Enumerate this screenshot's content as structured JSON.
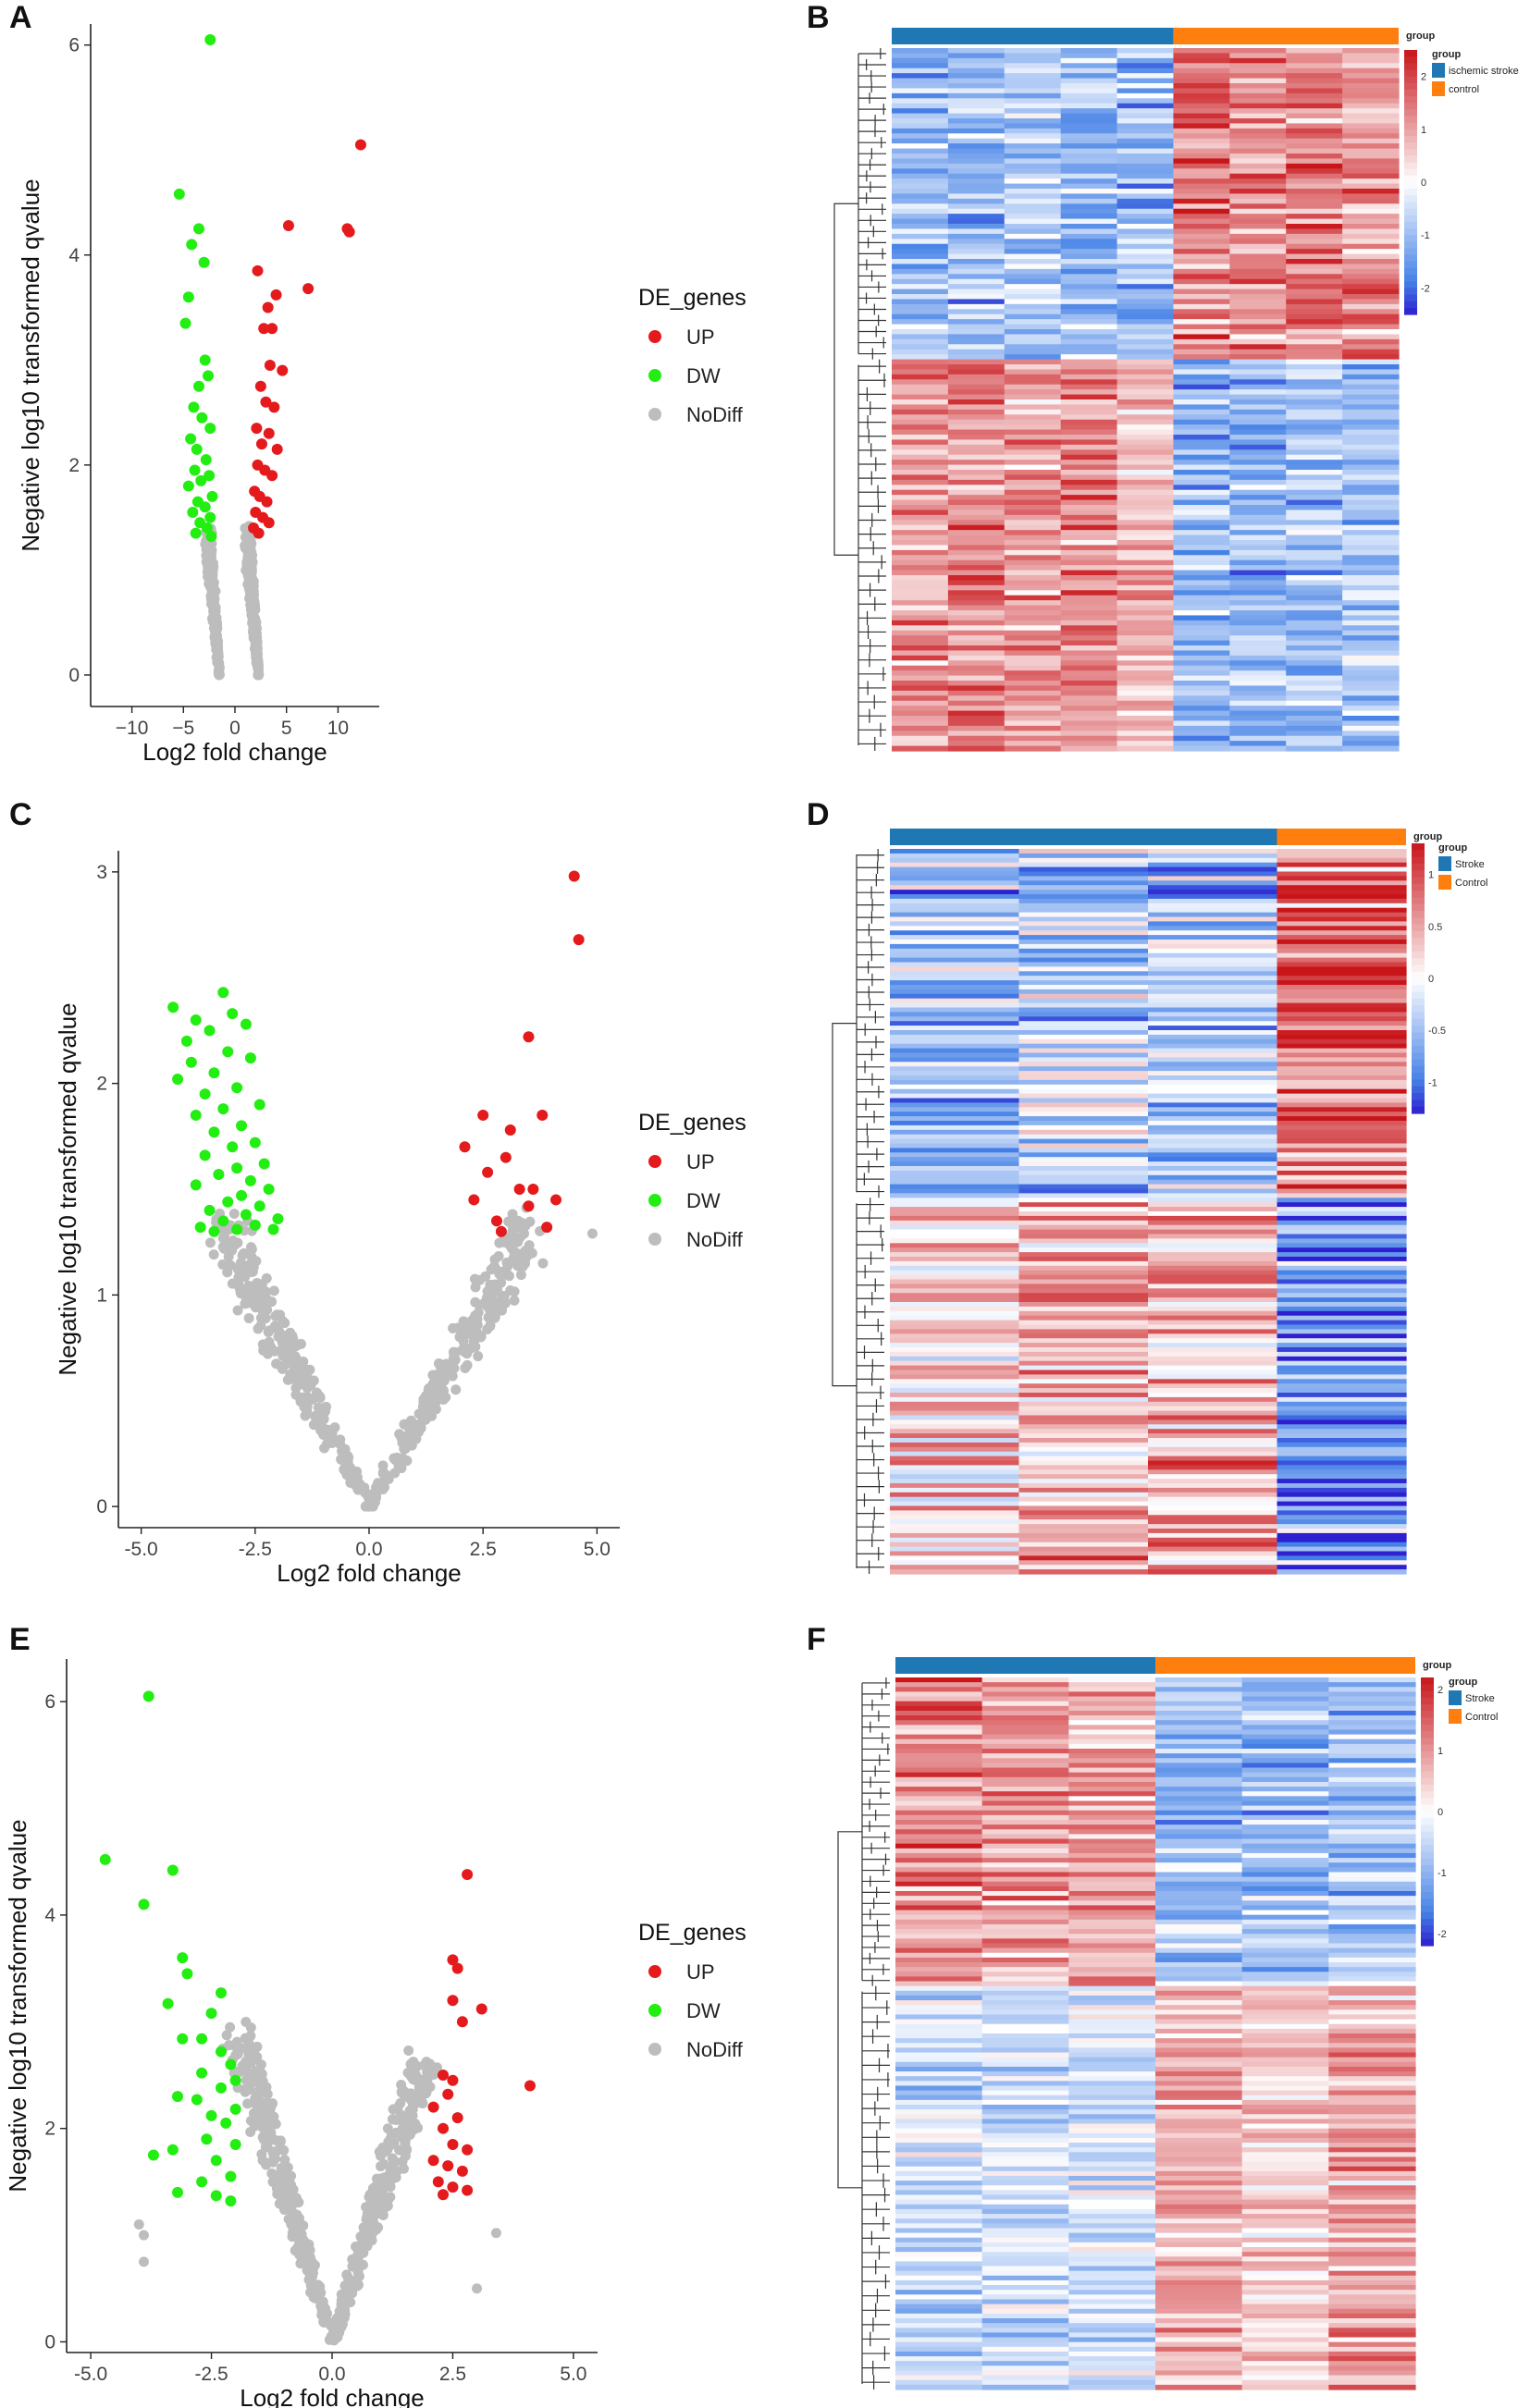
{
  "panel_labels": [
    "A",
    "B",
    "C",
    "D",
    "E",
    "F"
  ],
  "colors": {
    "up": "#e41a1c",
    "dw": "#22ee11",
    "nodiff": "#bdbdbd",
    "group_blue": "#1f77b4",
    "group_orange": "#ff7f0e",
    "heat_low": "#2e1fd0",
    "heat_mid": "#ffffff",
    "heat_high": "#c8151a"
  },
  "chart_data": [
    {
      "panel": "A",
      "type": "scatter",
      "title": "",
      "xlabel": "Log2 fold change",
      "ylabel": "Negative log10 transformed qvalue",
      "xlim": [
        -14,
        14
      ],
      "ylim": [
        -0.3,
        6.2
      ],
      "xticks": [
        -10,
        -5,
        0,
        5,
        10
      ],
      "yticks": [
        0,
        2,
        4,
        6
      ],
      "xtick_labels": [
        "−10",
        "−5",
        "0",
        "5",
        "10"
      ],
      "ytick_labels": [
        "0",
        "2",
        "4",
        "6"
      ],
      "legend": {
        "title": "DE_genes",
        "entries": [
          "UP",
          "DW",
          "NoDiff"
        ],
        "position": "right"
      },
      "series": [
        {
          "name": "UP",
          "points": [
            [
              12.2,
              5.05
            ],
            [
              11.1,
              4.22
            ],
            [
              10.9,
              4.25
            ],
            [
              5.2,
              4.28
            ],
            [
              7.1,
              3.68
            ],
            [
              2.2,
              3.85
            ],
            [
              3.2,
              3.5
            ],
            [
              4.0,
              3.62
            ],
            [
              3.6,
              3.3
            ],
            [
              2.8,
              3.3
            ],
            [
              4.6,
              2.9
            ],
            [
              3.4,
              2.95
            ],
            [
              2.5,
              2.75
            ],
            [
              3.0,
              2.6
            ],
            [
              3.8,
              2.55
            ],
            [
              2.1,
              2.35
            ],
            [
              3.3,
              2.3
            ],
            [
              2.6,
              2.2
            ],
            [
              4.1,
              2.15
            ],
            [
              2.2,
              2.0
            ],
            [
              2.9,
              1.95
            ],
            [
              3.6,
              1.9
            ],
            [
              1.9,
              1.75
            ],
            [
              2.4,
              1.7
            ],
            [
              3.1,
              1.65
            ],
            [
              2.0,
              1.55
            ],
            [
              2.7,
              1.5
            ],
            [
              3.3,
              1.45
            ],
            [
              1.8,
              1.4
            ],
            [
              2.3,
              1.35
            ]
          ]
        },
        {
          "name": "DW",
          "points": [
            [
              -2.4,
              6.05
            ],
            [
              -5.4,
              4.58
            ],
            [
              -4.2,
              4.1
            ],
            [
              -3.5,
              4.25
            ],
            [
              -3.0,
              3.93
            ],
            [
              -4.5,
              3.6
            ],
            [
              -4.8,
              3.35
            ],
            [
              -2.9,
              3.0
            ],
            [
              -3.5,
              2.75
            ],
            [
              -2.6,
              2.85
            ],
            [
              -4.0,
              2.55
            ],
            [
              -3.2,
              2.45
            ],
            [
              -2.4,
              2.35
            ],
            [
              -4.3,
              2.25
            ],
            [
              -3.7,
              2.15
            ],
            [
              -2.8,
              2.05
            ],
            [
              -3.9,
              1.95
            ],
            [
              -2.5,
              1.9
            ],
            [
              -3.3,
              1.85
            ],
            [
              -4.5,
              1.8
            ],
            [
              -2.2,
              1.7
            ],
            [
              -3.6,
              1.65
            ],
            [
              -2.9,
              1.6
            ],
            [
              -4.1,
              1.55
            ],
            [
              -2.4,
              1.5
            ],
            [
              -3.4,
              1.45
            ],
            [
              -2.7,
              1.4
            ],
            [
              -3.8,
              1.35
            ],
            [
              -2.3,
              1.32
            ]
          ]
        },
        {
          "name": "NoDiff",
          "shape": "funnel",
          "branches": [
            [
              [
                -2.6,
                1.3
              ],
              [
                -1.5,
                0.0
              ]
            ],
            [
              [
                1.2,
                1.3
              ],
              [
                2.3,
                0.0
              ]
            ]
          ]
        }
      ]
    },
    {
      "panel": "B",
      "type": "heatmap",
      "n_columns": 9,
      "group_title": "group",
      "groups": [
        {
          "name": "ischemic stroke",
          "count": 5
        },
        {
          "name": "control",
          "count": 4
        }
      ],
      "colorbar": {
        "ticks": [
          2,
          1,
          0,
          -1,
          -2
        ],
        "tick_labels": [
          "2",
          "1",
          "0",
          "-1",
          "-2"
        ],
        "range": [
          -2.5,
          2.5
        ]
      },
      "top_block_col_means": [
        -1.1,
        -1.2,
        -0.9,
        -1.0,
        -1.1,
        1.6,
        1.3,
        1.5,
        1.4
      ],
      "bottom_block_col_means": [
        1.2,
        1.4,
        1.1,
        1.3,
        0.9,
        -1.3,
        -1.2,
        -1.1,
        -1.0
      ]
    },
    {
      "panel": "C",
      "type": "scatter",
      "title": "",
      "xlabel": "Log2 fold change",
      "ylabel": "Negative log10 transformed qvalue",
      "xlim": [
        -5.5,
        5.5
      ],
      "ylim": [
        -0.1,
        3.1
      ],
      "xticks": [
        -5,
        -2.5,
        0,
        2.5,
        5
      ],
      "yticks": [
        0,
        1,
        2,
        3
      ],
      "xtick_labels": [
        "-5.0",
        "-2.5",
        "0.0",
        "2.5",
        "5.0"
      ],
      "ytick_labels": [
        "0",
        "1",
        "2",
        "3"
      ],
      "legend": {
        "title": "DE_genes",
        "entries": [
          "UP",
          "DW",
          "NoDiff"
        ],
        "position": "right"
      },
      "series": [
        {
          "name": "UP",
          "points": [
            [
              4.5,
              2.98
            ],
            [
              4.6,
              2.68
            ],
            [
              3.5,
              2.22
            ],
            [
              2.5,
              1.85
            ],
            [
              3.8,
              1.85
            ],
            [
              3.1,
              1.78
            ],
            [
              2.1,
              1.7
            ],
            [
              3.0,
              1.65
            ],
            [
              2.6,
              1.58
            ],
            [
              3.3,
              1.5
            ],
            [
              4.1,
              1.45
            ],
            [
              3.5,
              1.42
            ],
            [
              2.8,
              1.35
            ],
            [
              3.9,
              1.32
            ],
            [
              2.9,
              1.3
            ],
            [
              3.6,
              1.5
            ],
            [
              2.3,
              1.45
            ]
          ]
        },
        {
          "name": "DW",
          "points": [
            [
              -3.2,
              2.43
            ],
            [
              -4.3,
              2.36
            ],
            [
              -3.0,
              2.33
            ],
            [
              -3.8,
              2.3
            ],
            [
              -2.7,
              2.28
            ],
            [
              -3.5,
              2.25
            ],
            [
              -4.0,
              2.2
            ],
            [
              -3.1,
              2.15
            ],
            [
              -2.6,
              2.12
            ],
            [
              -3.9,
              2.1
            ],
            [
              -3.4,
              2.05
            ],
            [
              -4.2,
              2.02
            ],
            [
              -2.9,
              1.98
            ],
            [
              -3.6,
              1.95
            ],
            [
              -2.4,
              1.9
            ],
            [
              -3.2,
              1.88
            ],
            [
              -3.8,
              1.85
            ],
            [
              -2.8,
              1.8
            ],
            [
              -3.4,
              1.77
            ],
            [
              -2.5,
              1.72
            ],
            [
              -3.0,
              1.7
            ],
            [
              -3.6,
              1.66
            ],
            [
              -2.3,
              1.62
            ],
            [
              -2.9,
              1.6
            ],
            [
              -3.3,
              1.57
            ],
            [
              -2.6,
              1.54
            ],
            [
              -3.8,
              1.52
            ],
            [
              -2.2,
              1.5
            ],
            [
              -2.8,
              1.47
            ],
            [
              -3.1,
              1.44
            ],
            [
              -2.4,
              1.42
            ],
            [
              -3.5,
              1.4
            ],
            [
              -2.7,
              1.38
            ],
            [
              -2.0,
              1.36
            ],
            [
              -3.2,
              1.35
            ],
            [
              -2.5,
              1.33
            ],
            [
              -3.7,
              1.32
            ],
            [
              -2.1,
              1.31
            ],
            [
              -2.9,
              1.31
            ],
            [
              -3.4,
              1.3
            ]
          ]
        },
        {
          "name": "NoDiff",
          "shape": "funnel",
          "branches": [
            [
              [
                -3.2,
                1.3
              ],
              [
                0.0,
                0.0
              ]
            ],
            [
              [
                3.5,
                1.3
              ],
              [
                0.0,
                0.0
              ]
            ]
          ],
          "extra": [
            [
              4.9,
              1.29
            ],
            [
              3.4,
              1.29
            ]
          ]
        }
      ]
    },
    {
      "panel": "D",
      "type": "heatmap",
      "n_columns": 4,
      "group_title": "group",
      "groups": [
        {
          "name": "Stroke",
          "count": 3
        },
        {
          "name": "Control",
          "count": 1
        }
      ],
      "colorbar": {
        "ticks": [
          1,
          0.5,
          0,
          -0.5,
          -1
        ],
        "tick_labels": [
          "1",
          "0.5",
          "0",
          "-0.5",
          "-1"
        ],
        "range": [
          -1.3,
          1.3
        ]
      },
      "top_block_col_means": [
        -0.6,
        -0.4,
        -0.5,
        1.0
      ],
      "bottom_block_col_means": [
        0.3,
        0.5,
        0.6,
        -0.8
      ]
    },
    {
      "panel": "E",
      "type": "scatter",
      "title": "",
      "xlabel": "Log2 fold change",
      "ylabel": "Negative log10 transformed qvalue",
      "xlim": [
        -5.5,
        5.5
      ],
      "ylim": [
        -0.1,
        6.4
      ],
      "xticks": [
        -5,
        -2.5,
        0,
        2.5,
        5
      ],
      "yticks": [
        0,
        2,
        4,
        6
      ],
      "xtick_labels": [
        "-5.0",
        "-2.5",
        "0.0",
        "2.5",
        "5.0"
      ],
      "ytick_labels": [
        "0",
        "2",
        "4",
        "6"
      ],
      "legend": {
        "title": "DE_genes",
        "entries": [
          "UP",
          "DW",
          "NoDiff"
        ],
        "position": "right"
      },
      "series": [
        {
          "name": "UP",
          "points": [
            [
              2.8,
              4.38
            ],
            [
              2.5,
              3.58
            ],
            [
              2.6,
              3.5
            ],
            [
              3.1,
              3.12
            ],
            [
              2.5,
              3.2
            ],
            [
              2.7,
              3.0
            ],
            [
              4.1,
              2.4
            ],
            [
              2.3,
              2.5
            ],
            [
              2.5,
              2.45
            ],
            [
              2.4,
              2.32
            ],
            [
              2.1,
              2.2
            ],
            [
              2.6,
              2.1
            ],
            [
              2.3,
              2.0
            ],
            [
              2.5,
              1.85
            ],
            [
              2.8,
              1.8
            ],
            [
              2.1,
              1.7
            ],
            [
              2.4,
              1.65
            ],
            [
              2.7,
              1.6
            ],
            [
              2.2,
              1.5
            ],
            [
              2.5,
              1.45
            ],
            [
              2.8,
              1.42
            ],
            [
              2.3,
              1.38
            ]
          ]
        },
        {
          "name": "DW",
          "points": [
            [
              -3.8,
              6.05
            ],
            [
              -4.7,
              4.52
            ],
            [
              -3.3,
              4.42
            ],
            [
              -3.9,
              4.1
            ],
            [
              -3.1,
              3.6
            ],
            [
              -3.0,
              3.45
            ],
            [
              -3.4,
              3.17
            ],
            [
              -2.3,
              3.27
            ],
            [
              -2.5,
              3.08
            ],
            [
              -3.1,
              2.84
            ],
            [
              -2.7,
              2.84
            ],
            [
              -2.3,
              2.72
            ],
            [
              -2.1,
              2.6
            ],
            [
              -2.7,
              2.52
            ],
            [
              -2.0,
              2.45
            ],
            [
              -2.3,
              2.38
            ],
            [
              -3.2,
              2.3
            ],
            [
              -2.8,
              2.27
            ],
            [
              -2.0,
              2.18
            ],
            [
              -2.5,
              2.12
            ],
            [
              -2.2,
              2.05
            ],
            [
              -2.6,
              1.9
            ],
            [
              -2.0,
              1.85
            ],
            [
              -3.3,
              1.8
            ],
            [
              -2.4,
              1.7
            ],
            [
              -3.7,
              1.75
            ],
            [
              -2.1,
              1.55
            ],
            [
              -2.7,
              1.5
            ],
            [
              -3.2,
              1.4
            ],
            [
              -2.4,
              1.37
            ],
            [
              -2.1,
              1.32
            ]
          ]
        },
        {
          "name": "NoDiff",
          "shape": "funnel",
          "branches": [
            [
              [
                -2.0,
                2.9
              ],
              [
                0.0,
                0.0
              ]
            ],
            [
              [
                1.9,
                2.6
              ],
              [
                0.0,
                0.0
              ]
            ]
          ],
          "extra": [
            [
              -4.0,
              1.1
            ],
            [
              -3.9,
              1.0
            ],
            [
              -3.9,
              0.75
            ],
            [
              3.4,
              1.02
            ],
            [
              3.0,
              0.5
            ]
          ]
        }
      ]
    },
    {
      "panel": "F",
      "type": "heatmap",
      "n_columns": 6,
      "group_title": "group",
      "groups": [
        {
          "name": "Stroke",
          "count": 3
        },
        {
          "name": "Control",
          "count": 3
        }
      ],
      "colorbar": {
        "ticks": [
          2,
          1,
          0,
          -1,
          -2
        ],
        "tick_labels": [
          "2",
          "1",
          "0",
          "-1",
          "-2"
        ],
        "range": [
          -2.2,
          2.2
        ]
      },
      "top_block_col_means": [
        1.2,
        1.0,
        0.9,
        -0.9,
        -1.1,
        -0.9
      ],
      "bottom_block_col_means": [
        -0.6,
        -0.5,
        -0.4,
        0.8,
        0.6,
        0.9
      ]
    }
  ]
}
